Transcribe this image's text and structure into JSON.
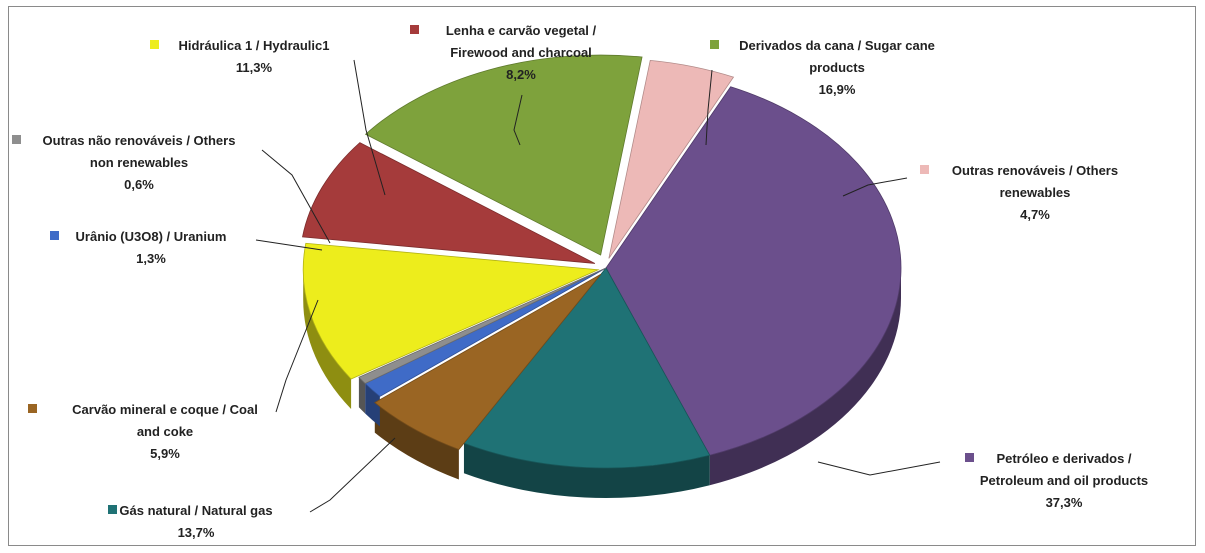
{
  "chart_data": {
    "type": "pie",
    "slices": [
      {
        "label_pt": "Petróleo e derivados /",
        "label_en": "Petroleum and oil products",
        "pct_text": "37,3%",
        "value": 37.3,
        "color": "#6b4f8c"
      },
      {
        "label_pt": "Gás natural / Natural gas",
        "label_en": "",
        "pct_text": "13,7%",
        "value": 13.7,
        "color": "#1f7275"
      },
      {
        "label_pt": "Carvão mineral e coque / Coal",
        "label_en": "and coke",
        "pct_text": "5,9%",
        "value": 5.9,
        "color": "#9a6523"
      },
      {
        "label_pt": "Urânio (U3O8) / Uranium",
        "label_en": "",
        "pct_text": "1,3%",
        "value": 1.3,
        "color": "#3f6bc7"
      },
      {
        "label_pt": "Outras não renováveis / Others",
        "label_en": "non renewables",
        "pct_text": "0,6%",
        "value": 0.6,
        "color": "#8e8e8e"
      },
      {
        "label_pt": "Hidráulica 1 / Hydraulic1",
        "label_en": "",
        "pct_text": "11,3%",
        "value": 11.3,
        "color": "#eded1c"
      },
      {
        "label_pt": "Lenha e carvão vegetal /",
        "label_en": "Firewood and charcoal",
        "pct_text": "8,2%",
        "value": 8.2,
        "color": "#a53b3b"
      },
      {
        "label_pt": "Derivados da cana / Sugar cane",
        "label_en": "products",
        "pct_text": "16,9%",
        "value": 16.9,
        "color": "#7ea23c"
      },
      {
        "label_pt": "Outras renováveis / Others",
        "label_en": "renewables",
        "pct_text": "4,7%",
        "value": 4.7,
        "color": "#edb9b7"
      }
    ]
  }
}
